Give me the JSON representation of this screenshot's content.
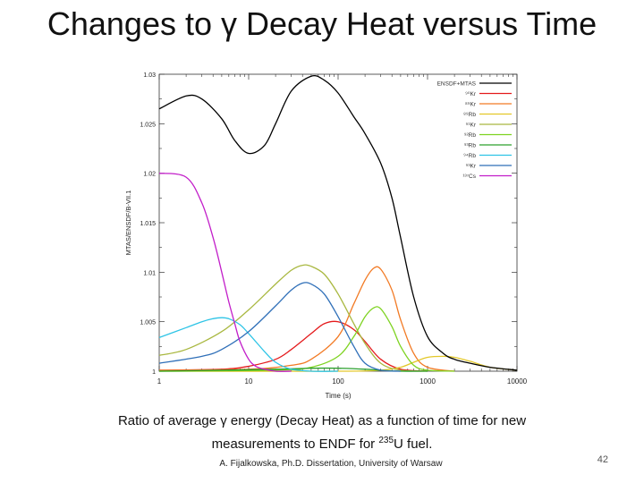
{
  "slide": {
    "title_prefix": "Changes to ",
    "title_symbol": "γ",
    "title_suffix": " Decay Heat versus Time",
    "caption_line1": "Ratio of average γ energy (Decay Heat) as a function of time for new",
    "caption_line2_prefix": "measurements to ENDF for ",
    "caption_isotope_mass": "235",
    "caption_line2_suffix": "U fuel.",
    "credit": "A. Fijalkowska, Ph.D. Dissertation, University of Warsaw",
    "page_number": "42"
  },
  "chart_data": {
    "type": "line",
    "xscale": "log",
    "xlim": [
      1,
      10000
    ],
    "ylim": [
      1,
      1.03
    ],
    "xticks": [
      "1",
      "10",
      "100",
      "1000",
      "10000"
    ],
    "yticks": [
      "1",
      "1.005",
      "1.01",
      "1.015",
      "1.02",
      "1.025",
      "1.03"
    ],
    "xlabel": "Time (s)",
    "ylabel": "MTAS/ENSDF/B-VII.1",
    "legend_position": "top-right",
    "grid": false,
    "series": [
      {
        "name": "ENSDF+MTAS",
        "color": "#000000",
        "x": [
          1,
          2,
          3,
          5,
          7,
          10,
          15,
          20,
          30,
          50,
          70,
          100,
          150,
          200,
          300,
          400,
          500,
          700,
          1000,
          1500,
          2000,
          3000,
          5000,
          10000
        ],
        "y": [
          1.0265,
          1.0278,
          1.0275,
          1.0255,
          1.0233,
          1.022,
          1.0228,
          1.025,
          1.0283,
          1.0298,
          1.0294,
          1.0281,
          1.0257,
          1.024,
          1.021,
          1.0175,
          1.0135,
          1.0075,
          1.0035,
          1.0018,
          1.0012,
          1.0008,
          1.0004,
          1.0001
        ]
      },
      {
        "name": "⁹⁰Kr",
        "color": "#e41a1c",
        "x": [
          1,
          5,
          10,
          20,
          30,
          50,
          70,
          100,
          150,
          200,
          300,
          500,
          1000
        ],
        "y": [
          1.0001,
          1.0002,
          1.0005,
          1.0012,
          1.0022,
          1.0038,
          1.0048,
          1.005,
          1.0042,
          1.003,
          1.0012,
          1.0002,
          1.0
        ]
      },
      {
        "name": "⁸⁹Kr",
        "color": "#f27a24",
        "x": [
          1,
          10,
          30,
          50,
          100,
          150,
          200,
          250,
          300,
          400,
          500,
          700,
          1000,
          2000
        ],
        "y": [
          1.0001,
          1.0002,
          1.0006,
          1.0012,
          1.0035,
          1.0068,
          1.0092,
          1.0104,
          1.0103,
          1.0082,
          1.0052,
          1.0018,
          1.0004,
          1.0
        ]
      },
      {
        "name": "⁸⁹Rb",
        "color": "#e3c82a",
        "x": [
          1,
          100,
          300,
          500,
          700,
          1000,
          1500,
          2000,
          3000,
          5000,
          10000
        ],
        "y": [
          1.0,
          1.0,
          1.0001,
          1.0004,
          1.0009,
          1.0014,
          1.0015,
          1.0014,
          1.001,
          1.0004,
          1.0001
        ]
      },
      {
        "name": "⁹¹Kr",
        "color": "#a9b840",
        "x": [
          1,
          2,
          5,
          10,
          20,
          30,
          40,
          50,
          70,
          100,
          150,
          200,
          300,
          500,
          1000
        ],
        "y": [
          1.0016,
          1.0022,
          1.004,
          1.0062,
          1.0088,
          1.0102,
          1.0107,
          1.0106,
          1.0098,
          1.0078,
          1.0048,
          1.0028,
          1.0008,
          1.0001,
          1.0
        ]
      },
      {
        "name": "⁹²Rb",
        "color": "#7ed321",
        "x": [
          1,
          20,
          50,
          100,
          150,
          200,
          250,
          300,
          400,
          500,
          700,
          1000,
          2000
        ],
        "y": [
          1.0,
          1.0001,
          1.0004,
          1.0015,
          1.0035,
          1.0055,
          1.0064,
          1.0063,
          1.0045,
          1.0025,
          1.0006,
          1.0001,
          1.0
        ]
      },
      {
        "name": "⁹³Rb",
        "color": "#2ca02c",
        "x": [
          1,
          5,
          20,
          50,
          100,
          200,
          300,
          500,
          1000
        ],
        "y": [
          1.0,
          1.0001,
          1.0002,
          1.0003,
          1.0003,
          1.0002,
          1.0001,
          1.0,
          1.0
        ]
      },
      {
        "name": "⁹⁴Rb",
        "color": "#2ec4e6",
        "x": [
          1,
          2,
          3,
          4,
          5,
          6,
          8,
          10,
          15,
          20,
          30,
          50,
          100
        ],
        "y": [
          1.0034,
          1.0044,
          1.005,
          1.0053,
          1.0054,
          1.0053,
          1.0047,
          1.0038,
          1.002,
          1.0009,
          1.0002,
          1.0,
          1.0
        ]
      },
      {
        "name": "⁹³Kr",
        "color": "#2f6fb8",
        "x": [
          1,
          3,
          5,
          10,
          20,
          30,
          40,
          50,
          70,
          100,
          150,
          200,
          300,
          500
        ],
        "y": [
          1.0008,
          1.0015,
          1.0022,
          1.004,
          1.0066,
          1.0082,
          1.0089,
          1.0088,
          1.0078,
          1.0055,
          1.0025,
          1.0008,
          1.0001,
          1.0
        ]
      },
      {
        "name": "¹³⁷Cs",
        "color": "#c21ec9",
        "x": [
          1,
          2,
          3,
          4,
          5,
          6,
          7,
          8,
          10,
          12,
          15,
          20,
          30
        ],
        "y": [
          1.02,
          1.0196,
          1.017,
          1.0135,
          1.01,
          1.007,
          1.0048,
          1.003,
          1.0012,
          1.0005,
          1.0002,
          1.0,
          1.0
        ]
      }
    ]
  }
}
